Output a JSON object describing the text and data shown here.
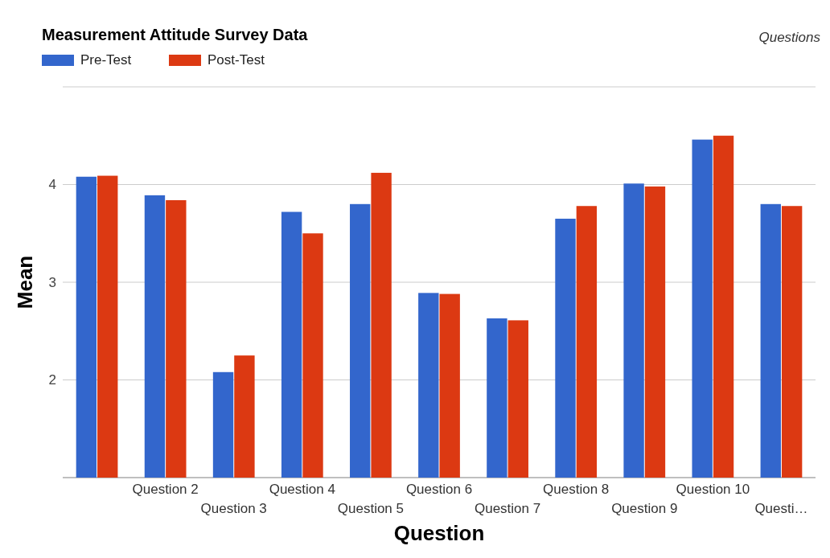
{
  "chart_data": {
    "type": "bar",
    "title": "Measurement Attitude Survey Data",
    "xlabel": "Question",
    "ylabel": "Mean",
    "annotations": [
      "Questions"
    ],
    "categories": [
      null,
      "Question 2",
      "Question 3",
      "Question 4",
      "Question 5",
      "Question 6",
      "Question 7",
      "Question 8",
      "Question 9",
      "Question 10",
      "Questi…"
    ],
    "series": [
      {
        "name": "Pre-Test",
        "color": "#3366cc",
        "values": [
          4.08,
          3.89,
          2.08,
          3.72,
          3.8,
          2.89,
          2.63,
          3.65,
          4.01,
          4.46,
          3.8
        ]
      },
      {
        "name": "Post-Test",
        "color": "#dc3912",
        "values": [
          4.09,
          3.84,
          2.25,
          3.5,
          4.12,
          2.88,
          2.61,
          3.78,
          3.98,
          4.5,
          3.78
        ]
      }
    ],
    "ylim": [
      1,
      5
    ],
    "yticks": [
      {
        "value": 1,
        "label": null
      },
      2,
      3,
      4,
      {
        "value": 5,
        "label": null
      }
    ],
    "grid": "y",
    "legend": "top left"
  }
}
